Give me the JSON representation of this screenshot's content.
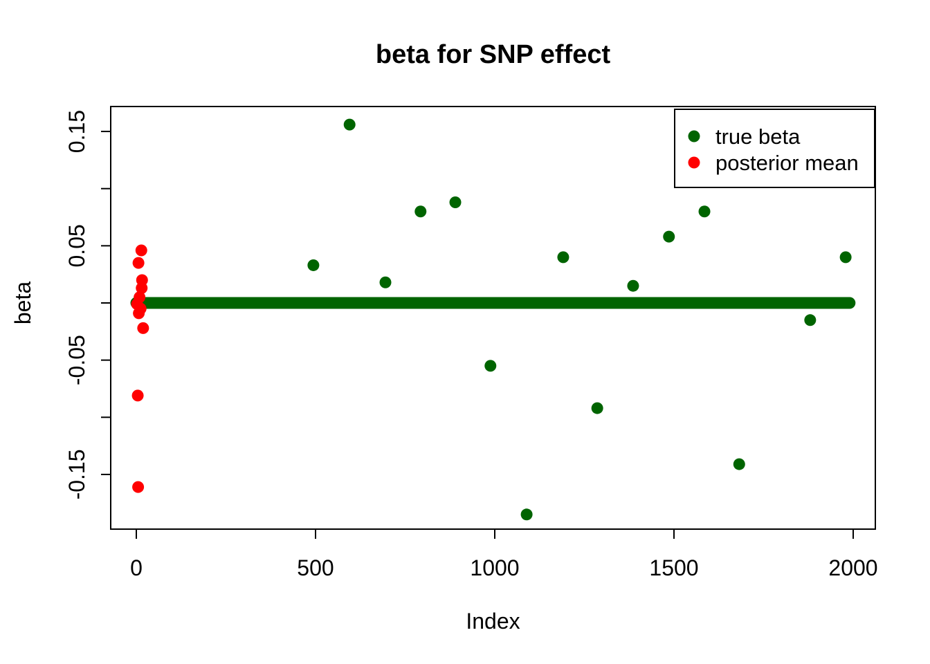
{
  "title": "beta for SNP effect",
  "chart_data": {
    "type": "scatter",
    "title": "beta for SNP effect",
    "xlabel": "Index",
    "ylabel": "beta",
    "xlim": [
      -80,
      2080
    ],
    "ylim": [
      -0.2,
      0.172
    ],
    "grid": false,
    "background": "#ffffff",
    "border_color": "#000000",
    "x_ticks": {
      "values": [
        0,
        500,
        1000,
        1500,
        2000
      ],
      "labels": [
        "0",
        "500",
        "1000",
        "1500",
        "2000"
      ]
    },
    "y_ticks": {
      "values": [
        0.15,
        0.1,
        0.05,
        0,
        -0.05,
        -0.1,
        -0.15
      ],
      "labels": [
        "0.15",
        "",
        "0.05",
        "",
        "-0.05",
        "",
        "-0.15"
      ]
    },
    "legend": {
      "position": "top-right",
      "entries": [
        {
          "label": "true beta",
          "color": "#006400"
        },
        {
          "label": "posterior mean",
          "color": "#ff0000"
        }
      ]
    },
    "series": [
      {
        "name": "true beta",
        "color": "#006400",
        "marker": "filled-circle",
        "zero_segment": {
          "x_from": 0,
          "x_to": 1990,
          "y": 0
        },
        "points": [
          [
            494,
            0.033
          ],
          [
            595,
            0.156
          ],
          [
            695,
            0.018
          ],
          [
            793,
            0.08
          ],
          [
            890,
            0.088
          ],
          [
            988,
            -0.055
          ],
          [
            1089,
            -0.185
          ],
          [
            1191,
            0.04
          ],
          [
            1286,
            -0.092
          ],
          [
            1386,
            0.015
          ],
          [
            1486,
            0.058
          ],
          [
            1585,
            0.08
          ],
          [
            1682,
            -0.141
          ],
          [
            1880,
            -0.015
          ],
          [
            1979,
            0.04
          ]
        ]
      },
      {
        "name": "posterior mean",
        "color": "#ff0000",
        "marker": "filled-circle",
        "points": [
          [
            14,
            0.046
          ],
          [
            6,
            0.035
          ],
          [
            16,
            0.02
          ],
          [
            15,
            0.013
          ],
          [
            9,
            0.005
          ],
          [
            2,
            -0.001
          ],
          [
            12,
            -0.005
          ],
          [
            7,
            -0.009
          ],
          [
            19,
            -0.022
          ],
          [
            4,
            -0.081
          ],
          [
            5,
            -0.161
          ]
        ]
      }
    ]
  }
}
